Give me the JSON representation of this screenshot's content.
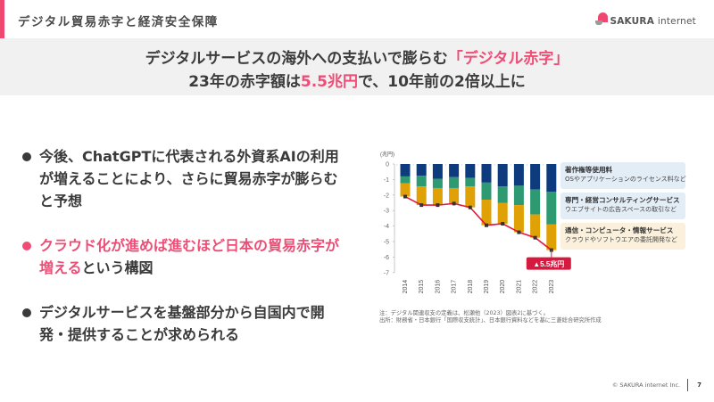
{
  "header": {
    "title": "デジタル貿易赤字と経済安全保障",
    "logo": {
      "brand": "SAKURA",
      "suffix": "internet"
    }
  },
  "banner": {
    "line1_prefix": "デジタルサービスの海外への支払いで膨らむ",
    "line1_highlight": "「デジタル赤字」",
    "line2_prefix": "23年の赤字額は",
    "line2_highlight": "5.5兆円",
    "line2_suffix": "で、10年前の2倍以上に"
  },
  "bullets": [
    {
      "text": "今後、ChatGPTに代表される外資系AIの利用が増えることにより、さらに貿易赤字が膨らむと予想"
    },
    {
      "highlight": "クラウド化が進めば進むほど日本の貿易赤字が増える",
      "text": "という構図"
    },
    {
      "text": "デジタルサービスを基盤部分から自国内で開発・提供することが求められる"
    }
  ],
  "legend": [
    {
      "title": "著作権等使用料",
      "sub": "OSやアプリケーションのライセンス料など",
      "bg": "#e3edf6"
    },
    {
      "title": "専門・経営コンサルティングサービス",
      "sub": "ウエブサイトの広告スペースの取引など",
      "bg": "#e3edf6"
    },
    {
      "title": "通信・コンピュータ・情報サービス",
      "sub": "クラウドやソフトウエアの委託開発など",
      "bg": "#fbf0dc"
    }
  ],
  "callout": "▲5.5兆円",
  "notes": {
    "note": "注：デジタル関連収支の定義は、松瀬他（2023）図表2に基づく。",
    "source": "出所：財務省・日本銀行「国際収支統計」、日本銀行資料などを基に三菱総合研究所作成"
  },
  "footer": {
    "copyright": "© SAKURA internet Inc.",
    "page": "7"
  },
  "colors": {
    "accent": "#ef4770",
    "navy": "#0d3b7e",
    "green": "#2e9a72",
    "gold": "#e0a106",
    "line": "#e4183f"
  },
  "chart_data": {
    "type": "bar",
    "stacked": true,
    "title": "",
    "ylabel": "(兆円)",
    "xlabel": "",
    "ylim": [
      -7,
      0
    ],
    "yticks": [
      0,
      -1,
      -2,
      -3,
      -4,
      -5,
      -6,
      -7
    ],
    "categories": [
      "2014",
      "2015",
      "2016",
      "2017",
      "2018",
      "2019",
      "2020",
      "2021",
      "2022",
      "2023"
    ],
    "series": [
      {
        "name": "著作権等使用料",
        "color": "#0d3b7e",
        "values": [
          -0.8,
          -0.75,
          -0.95,
          -0.85,
          -0.9,
          -1.2,
          -1.45,
          -1.4,
          -1.65,
          -1.8
        ]
      },
      {
        "name": "専門・経営コンサルティングサービス",
        "color": "#2e9a72",
        "values": [
          -0.45,
          -0.7,
          -0.6,
          -0.7,
          -0.55,
          -1.1,
          -1.05,
          -1.25,
          -1.6,
          -2.1
        ]
      },
      {
        "name": "通信・コンピュータ・情報サービス",
        "color": "#e0a106",
        "values": [
          -0.85,
          -1.2,
          -1.1,
          -1.0,
          -1.35,
          -1.65,
          -1.35,
          -1.75,
          -1.5,
          -1.65
        ]
      }
    ],
    "total_line": {
      "name": "デジタル収支合計",
      "color": "#e4183f",
      "values": [
        -2.1,
        -2.65,
        -2.65,
        -2.55,
        -2.8,
        -3.95,
        -3.85,
        -4.4,
        -4.75,
        -5.55
      ]
    },
    "annotation": "▲5.5兆円",
    "legend_position": "right",
    "grid": false
  }
}
